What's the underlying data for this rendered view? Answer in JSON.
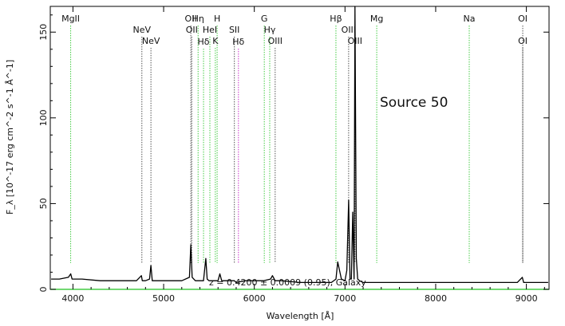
{
  "chart_data": {
    "type": "line",
    "title": "",
    "xlabel": "Wavelength [Å]",
    "ylabel": "F_λ [10^-17 erg cm^-2 s^-1 Å^-1]",
    "xlim": [
      3750,
      9250
    ],
    "ylim": [
      0,
      165
    ],
    "x_ticks": [
      4000,
      5000,
      6000,
      7000,
      8000,
      9000
    ],
    "y_ticks": [
      0,
      50,
      100,
      150
    ],
    "annotation": "Source 50",
    "fit_text": "z = 0.4200 ± 0.0009 (0.95), Galaxy",
    "line_ids": [
      {
        "label": "MgII",
        "x": 3975,
        "color": "#44cc44",
        "row": 1
      },
      {
        "label": "NeV",
        "x": 4760,
        "color": "#555555",
        "row": 2
      },
      {
        "label": "NeV",
        "x": 4860,
        "color": "#555555",
        "row": 3
      },
      {
        "label": "OII",
        "x": 5300,
        "color": "#555555",
        "row": 1
      },
      {
        "label": "OII",
        "x": 5310,
        "color": "#555555",
        "row": 2
      },
      {
        "label": "Hη",
        "x": 5380,
        "color": "#44cc44",
        "row": 1
      },
      {
        "label": "Hδ",
        "x": 5440,
        "color": "#44cc44",
        "row": 4
      },
      {
        "label": "H",
        "x": 5590,
        "color": "#44cc44",
        "row": 1
      },
      {
        "label": "HeI",
        "x": 5510,
        "color": "#44cc44",
        "row": 2
      },
      {
        "label": "K",
        "x": 5570,
        "color": "#44cc44",
        "row": 3
      },
      {
        "label": "SII",
        "x": 5780,
        "color": "#555555",
        "row": 2
      },
      {
        "label": "Hδ",
        "x": 5825,
        "color": "#cc33cc",
        "row": 4
      },
      {
        "label": "G",
        "x": 6110,
        "color": "#44cc44",
        "row": 1
      },
      {
        "label": "Hγ",
        "x": 6170,
        "color": "#44cc44",
        "row": 2
      },
      {
        "label": "OIII",
        "x": 6230,
        "color": "#555555",
        "row": 3
      },
      {
        "label": "Hβ",
        "x": 6900,
        "color": "#44cc44",
        "row": 1
      },
      {
        "label": "OIII",
        "x": 7040,
        "color": "#555555",
        "row": 2
      },
      {
        "label": "OIII",
        "x": 7110,
        "color": "#555555",
        "row": 3
      },
      {
        "label": "Mg",
        "x": 7350,
        "color": "#44cc44",
        "row": 1
      },
      {
        "label": "Na",
        "x": 8370,
        "color": "#44cc44",
        "row": 1
      },
      {
        "label": "OI",
        "x": 8960,
        "color": "#555555",
        "row": 1
      },
      {
        "label": "OI",
        "x": 8960,
        "color": "#555555",
        "row": 3
      }
    ],
    "series": [
      {
        "color": "#000000",
        "x": [
          3760,
          3850,
          3950,
          3975,
          3990,
          4100,
          4300,
          4500,
          4700,
          4755,
          4765,
          4800,
          4845,
          4860,
          4875,
          5000,
          5200,
          5285,
          5300,
          5315,
          5350,
          5440,
          5465,
          5480,
          5500,
          5600,
          5620,
          5640,
          5700,
          5780,
          5800,
          5900,
          6100,
          6180,
          6200,
          6230,
          6300,
          6500,
          6700,
          6850,
          6900,
          6920,
          6960,
          7000,
          7020,
          7040,
          7055,
          7070,
          7085,
          7100,
          7110,
          7125,
          7140,
          7160,
          7200,
          7400,
          7800,
          8200,
          8600,
          8900,
          8955,
          8970,
          9100,
          9240
        ],
        "y": [
          6,
          6,
          7,
          9,
          6,
          6,
          5,
          5,
          5,
          8,
          5,
          5,
          6,
          14,
          5,
          5,
          5,
          7,
          26,
          7,
          5,
          5,
          18,
          6,
          5,
          5,
          9,
          5,
          5,
          5,
          4,
          5,
          5,
          6,
          8,
          5,
          5,
          4,
          4,
          4,
          6,
          16,
          6,
          5,
          11,
          52,
          6,
          6,
          45,
          6,
          170,
          18,
          6,
          5,
          4,
          4,
          4,
          4,
          4,
          4,
          7,
          4,
          4,
          4
        ]
      }
    ]
  }
}
